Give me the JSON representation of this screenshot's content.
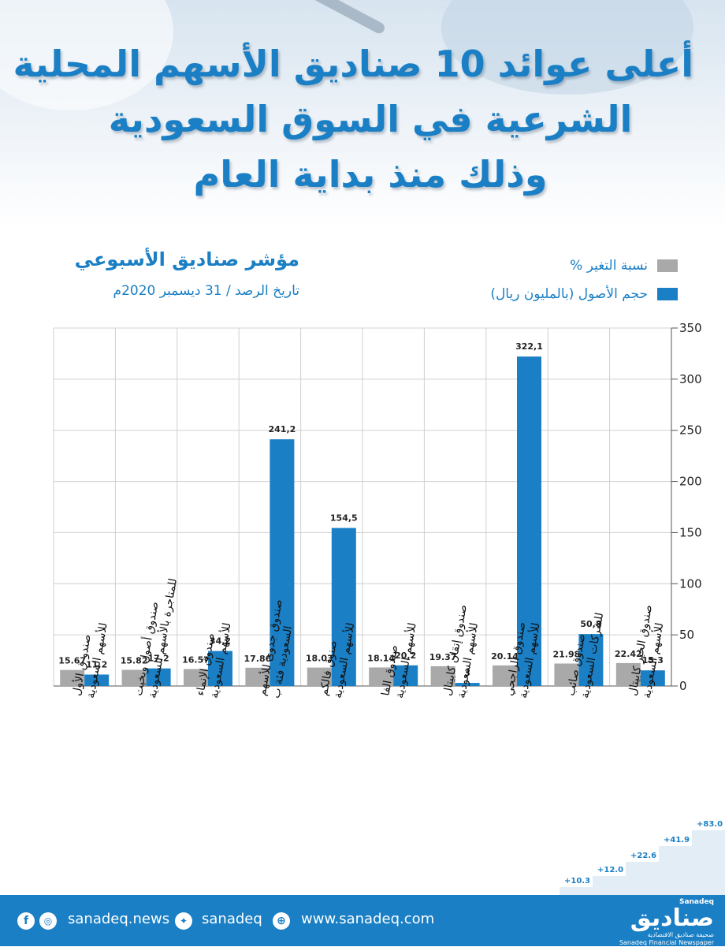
{
  "title_lines": [
    "أعلى عوائد 10 صناديق الأسهم المحلية",
    "الشرعية في السوق السعودية",
    "وذلك منذ بداية العام"
  ],
  "subtitle": "مؤشر صناديق الأسبوعي",
  "date_line": "تاريخ الرصد / 31 ديسمبر 2020م",
  "colors": {
    "primary": "#1a7fc4",
    "gray": "#a9a9a9",
    "grid": "#d0d0d0"
  },
  "chart_data": {
    "type": "bar",
    "y_axis_position": "right",
    "ylim": [
      0,
      350
    ],
    "yticks": [
      0,
      50,
      100,
      150,
      200,
      250,
      300,
      350
    ],
    "legend_position": "top-right",
    "categories": [
      "صندو ق الأول للأسهم السعودية",
      "صندوق أصول وبخيت للمتاجرة بالأسهم السعودية",
      "صندوق الإنماء للأسهم السعودية",
      "صندوق جدوى للأسهم السعودية فئة ب",
      "صنوق فالكم للأسهم السعودية",
      "صندوق الفا للأسهم السعودية",
      "صندوق إتقان كابيتال للأسهم السعودية",
      "صندوق الراجحي للأسهم السعودية",
      "صندوق صائب للشركات السعودية",
      "صندوق الخير كابيتال للأسهم السعودية"
    ],
    "series": [
      {
        "name": "نسبة التغير %",
        "color": "#a9a9a9",
        "values": [
          15.67,
          15.82,
          16.57,
          17.86,
          18.03,
          18.14,
          19.37,
          20.14,
          21.98,
          22.42
        ],
        "labels": [
          "15.67",
          "15.82",
          "16.57",
          "17.86",
          "18.03",
          "18.14",
          "19.37",
          "20.14",
          "21.98",
          "22.42"
        ]
      },
      {
        "name": "حجم الأصول (بالمليون ريال)",
        "color": "#1a7fc4",
        "values": [
          11.2,
          17.2,
          34.2,
          241.2,
          154.5,
          20.2,
          3,
          322.1,
          50.8,
          15.3
        ],
        "labels": [
          "11,2",
          "17,2",
          "34,2",
          "241,2",
          "154,5",
          "20,2",
          "3",
          "322,1",
          "50,8",
          "15,3"
        ]
      }
    ]
  },
  "growth_steps": [
    "+10.3",
    "+12.0",
    "+22.6",
    "+41.9",
    "+83.0"
  ],
  "footer": {
    "social_handle_1": "sanadeq.news",
    "social_handle_2": "sanadeq",
    "website": "www.sanadeq.com",
    "logo_tag": "Sanadeq",
    "logo_arabic": "صناديق",
    "logo_sub_ar": "صحيفة صناديق الاقتصادية",
    "logo_sub_en": "Sanadeq Financial Newspaper"
  }
}
